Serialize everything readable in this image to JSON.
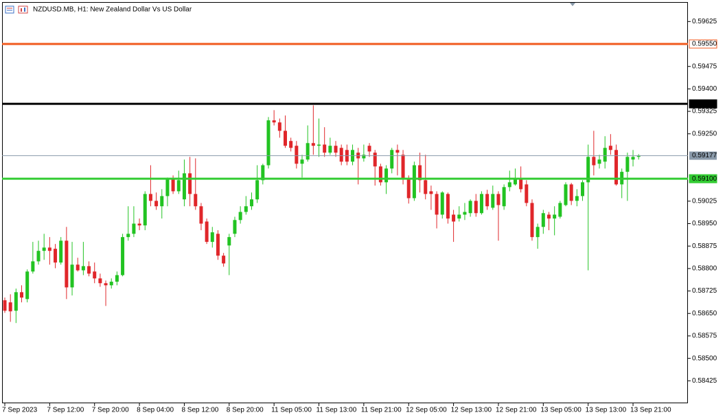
{
  "chart_data": {
    "type": "candlestick",
    "title": "NZDUSD.MB, H1:  New Zealand Dollar Vs US Dollar",
    "categories": [
      "7 Sep 2023",
      null,
      null,
      null,
      null,
      null,
      null,
      null,
      "7 Sep 12:00",
      null,
      null,
      null,
      null,
      null,
      null,
      null,
      "7 Sep 20:00",
      null,
      null,
      null,
      null,
      null,
      null,
      null,
      "8 Sep 04:00",
      null,
      null,
      null,
      null,
      null,
      null,
      null,
      "8 Sep 12:00",
      null,
      null,
      null,
      null,
      null,
      null,
      null,
      "8 Sep 20:00",
      null,
      null,
      null,
      null,
      null,
      null,
      null,
      "11 Sep 05:00",
      null,
      null,
      null,
      null,
      null,
      null,
      null,
      "11 Sep 13:00",
      null,
      null,
      null,
      null,
      null,
      null,
      null,
      "11 Sep 21:00",
      null,
      null,
      null,
      null,
      null,
      null,
      null,
      "12 Sep 05:00",
      null,
      null,
      null,
      null,
      null,
      null,
      null,
      "12 Sep 13:00",
      null,
      null,
      null,
      null,
      null,
      null,
      null,
      "12 Sep 21:00",
      null,
      null,
      null,
      null,
      null,
      null,
      null,
      "13 Sep 05:00",
      null,
      null,
      null,
      null,
      null,
      null,
      null,
      "13 Sep 13:00",
      null,
      null,
      null,
      null,
      null,
      null,
      null,
      "13 Sep 21:00",
      null
    ],
    "series": [
      {
        "up_color": "#22c322",
        "down_color": "#e0262a",
        "open": [
          0.58694,
          0.58687,
          0.58659,
          0.58721,
          0.58698,
          0.5879,
          0.58824,
          0.58859,
          0.5887,
          0.58866,
          0.5882,
          0.58893,
          0.58737,
          0.58813,
          0.58794,
          0.58808,
          0.5879,
          0.58767,
          0.58751,
          0.58744,
          0.58756,
          0.58778,
          0.58905,
          0.58916,
          0.5895,
          0.58944,
          0.59049,
          0.59026,
          0.59008,
          0.59042,
          0.591,
          0.59058,
          0.59031,
          0.59118,
          0.59049,
          0.59008,
          0.58957,
          0.58889,
          0.58916,
          0.58843,
          0.58877,
          0.58916,
          0.58962,
          0.58989,
          0.59008,
          0.59031,
          0.59095,
          0.59145,
          0.59295,
          0.59288,
          0.5926,
          0.59226,
          0.5921,
          0.5915,
          0.59164,
          0.59219,
          0.5921,
          0.59214,
          0.59187,
          0.5921,
          0.59203,
          0.59196,
          0.59157,
          0.59187,
          0.59168,
          0.5921,
          0.59187,
          0.59141,
          0.59088,
          0.59134,
          0.59196,
          0.5918,
          0.591,
          0.59035,
          0.59145,
          0.59095,
          0.59058,
          0.59049,
          0.5898,
          0.59049,
          0.5898,
          0.58967,
          0.5898,
          0.58985,
          0.59026,
          0.58985,
          0.59049,
          0.59003,
          0.59049,
          0.59008,
          0.59072,
          0.59081,
          0.591,
          0.59081,
          0.59019,
          0.58905,
          0.58939,
          0.5898,
          0.58967,
          0.58973,
          0.59012,
          0.59081,
          0.59026,
          0.59042,
          0.59088,
          0.59173,
          0.5915,
          0.59157,
          0.5921,
          0.59196,
          0.59081,
          0.59123,
          0.59164,
          0.59173
        ],
        "high": [
          0.58703,
          0.58714,
          0.58733,
          0.58744,
          0.58797,
          0.58889,
          0.58893,
          0.58916,
          0.58905,
          0.58882,
          0.58905,
          0.58939,
          0.58889,
          0.58836,
          0.58889,
          0.58824,
          0.5882,
          0.58783,
          0.5876,
          0.58767,
          0.5879,
          0.58916,
          0.59008,
          0.59008,
          0.58967,
          0.59058,
          0.59145,
          0.59054,
          0.59065,
          0.59104,
          0.59111,
          0.59127,
          0.59164,
          0.59173,
          0.59168,
          0.59019,
          0.58967,
          0.58939,
          0.58928,
          0.58852,
          0.58916,
          0.58973,
          0.59008,
          0.59042,
          0.59054,
          0.59145,
          0.5915,
          0.59306,
          0.59329,
          0.59301,
          0.59311,
          0.59237,
          0.59226,
          0.5918,
          0.59278,
          0.59345,
          0.59301,
          0.59272,
          0.59237,
          0.59226,
          0.59214,
          0.59214,
          0.59214,
          0.59203,
          0.59214,
          0.59219,
          0.59196,
          0.5915,
          0.59145,
          0.59203,
          0.59214,
          0.59196,
          0.59111,
          0.59157,
          0.59187,
          0.5918,
          0.59077,
          0.59058,
          0.59058,
          0.59054,
          0.58996,
          0.59008,
          0.59019,
          0.59031,
          0.59049,
          0.59058,
          0.59063,
          0.59077,
          0.59058,
          0.59081,
          0.59127,
          0.59134,
          0.59141,
          0.59095,
          0.59031,
          0.5895,
          0.58996,
          0.58989,
          0.59008,
          0.59026,
          0.59088,
          0.59086,
          0.59065,
          0.59095,
          0.59214,
          0.5926,
          0.5918,
          0.59242,
          0.59249,
          0.59214,
          0.59134,
          0.59187,
          0.59196,
          0.59182
        ],
        "low": [
          0.58652,
          0.58622,
          0.58618,
          0.58687,
          0.58687,
          0.58783,
          0.58813,
          0.58829,
          0.58813,
          0.58801,
          0.58813,
          0.58698,
          0.5871,
          0.5879,
          0.58778,
          0.58774,
          0.58751,
          0.58739,
          0.58675,
          0.58733,
          0.58744,
          0.58774,
          0.58893,
          0.58905,
          0.58928,
          0.58928,
          0.59008,
          0.58996,
          0.58967,
          0.59008,
          0.59049,
          0.59049,
          0.59008,
          0.59008,
          0.58996,
          0.58928,
          0.58882,
          0.5887,
          0.58829,
          0.58806,
          0.58778,
          0.58905,
          0.5895,
          0.5898,
          0.58996,
          0.59019,
          0.59081,
          0.59134,
          0.59278,
          0.59237,
          0.59203,
          0.59191,
          0.59134,
          0.59104,
          0.59157,
          0.5918,
          0.59173,
          0.59173,
          0.5918,
          0.59173,
          0.59145,
          0.59145,
          0.59145,
          0.59081,
          0.59157,
          0.59173,
          0.59077,
          0.59077,
          0.59049,
          0.59118,
          0.59111,
          0.59081,
          0.59017,
          0.59026,
          0.59054,
          0.59031,
          0.58996,
          0.58934,
          0.58967,
          0.5895,
          0.58889,
          0.58957,
          0.58962,
          0.58973,
          0.58973,
          0.5898,
          0.58996,
          0.58996,
          0.58893,
          0.58996,
          0.59058,
          0.59077,
          0.59054,
          0.59008,
          0.58893,
          0.58866,
          0.58916,
          0.58928,
          0.58911,
          0.58967,
          0.59008,
          0.59012,
          0.59008,
          0.59026,
          0.58794,
          0.59111,
          0.59134,
          0.59134,
          0.5918,
          0.59077,
          0.59035,
          0.59026,
          0.59141,
          0.59164
        ],
        "close": [
          0.58659,
          0.58657,
          0.58721,
          0.58703,
          0.5879,
          0.58824,
          0.58859,
          0.5887,
          0.58859,
          0.5882,
          0.58893,
          0.58737,
          0.58813,
          0.58794,
          0.58808,
          0.58783,
          0.58767,
          0.58751,
          0.58744,
          0.58756,
          0.58778,
          0.58905,
          0.58916,
          0.5895,
          0.58944,
          0.59049,
          0.59026,
          0.59008,
          0.59042,
          0.591,
          0.59058,
          0.59095,
          0.59118,
          0.59049,
          0.59008,
          0.5895,
          0.58889,
          0.58921,
          0.58843,
          0.58817,
          0.58905,
          0.58962,
          0.58989,
          0.59008,
          0.59031,
          0.59095,
          0.59145,
          0.59295,
          0.59288,
          0.5926,
          0.5921,
          0.59203,
          0.5915,
          0.59164,
          0.59219,
          0.5921,
          0.59214,
          0.59187,
          0.5921,
          0.59187,
          0.59157,
          0.59157,
          0.59196,
          0.59168,
          0.5918,
          0.59191,
          0.59141,
          0.59088,
          0.59134,
          0.59196,
          0.59187,
          0.591,
          0.59035,
          0.59145,
          0.59095,
          0.59049,
          0.59049,
          0.5898,
          0.59054,
          0.58967,
          0.58957,
          0.5898,
          0.58989,
          0.59026,
          0.58985,
          0.59049,
          0.59008,
          0.59049,
          0.59012,
          0.59072,
          0.59088,
          0.591,
          0.59065,
          0.59019,
          0.58905,
          0.58939,
          0.58985,
          0.58967,
          0.5898,
          0.59019,
          0.59081,
          0.59026,
          0.59042,
          0.59088,
          0.59173,
          0.59145,
          0.59164,
          0.59203,
          0.59196,
          0.59081,
          0.59123,
          0.59173,
          0.59173,
          0.59177
        ]
      }
    ],
    "ylim": [
      0.5835,
      0.5969
    ],
    "yticks": [
      0.59625,
      0.59475,
      {
        "value": 0.594,
        "label": "0.59400"
      },
      0.59325,
      {
        "value": 0.5925,
        "label": "0.59250"
      },
      0.59025,
      {
        "value": 0.5895,
        "label": "0.58950"
      },
      0.58875,
      {
        "value": 0.588,
        "label": "0.58800"
      },
      0.58725,
      {
        "value": 0.5865,
        "label": "0.58650"
      },
      0.58575,
      {
        "value": 0.585,
        "label": "0.58500"
      },
      0.58425
    ],
    "levels": [
      {
        "value": 0.5955,
        "label": "0.59550",
        "color": "#f05a1e"
      },
      {
        "value": 0.5935,
        "label": "0.59350",
        "color": "#000000"
      },
      {
        "value": 0.591,
        "label": "0.59100",
        "color": "#33cc33"
      }
    ],
    "current_price": 0.59177,
    "current_price_color": "#8a9aaa",
    "grid": false
  }
}
